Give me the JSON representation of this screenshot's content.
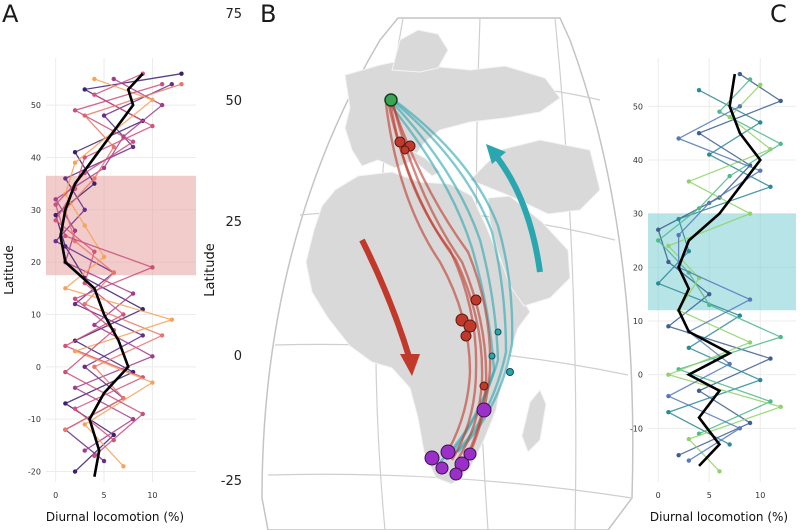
{
  "panels": {
    "a": {
      "letter": "A"
    },
    "b": {
      "letter": "B"
    },
    "c": {
      "letter": "C"
    }
  },
  "colors": {
    "band_a": "#e8a0a0",
    "band_c": "#7ccfd4",
    "mean_line": "#000000",
    "autumn_track": "#c0392b",
    "spring_track": "#2aa6b0",
    "breeding_site": "#3aa655",
    "wintering_site": "#9b30c8",
    "land": "#d9d9d9",
    "grid": "#ececec"
  },
  "map": {
    "lat_title": "Latitude",
    "lat_ticks": [
      "75",
      "50",
      "25",
      "0",
      "-25"
    ],
    "arrow_autumn": "autumn (southward)",
    "arrow_spring": "spring (northward)"
  },
  "chart_data": [
    {
      "panel": "A",
      "type": "line",
      "xlabel": "Diurnal locomotion (%)",
      "ylabel": "Latitude",
      "xlim": [
        -1,
        14.5
      ],
      "ylim": [
        -22,
        59
      ],
      "xticks": [
        0,
        5,
        10
      ],
      "yticks": [
        -20,
        -10,
        0,
        10,
        20,
        30,
        40,
        50
      ],
      "grid": true,
      "band": {
        "lat_from": 17.5,
        "lat_to": 36.5
      },
      "mean_line": {
        "lat": [
          -21,
          -16,
          -10,
          -5,
          0,
          5,
          10,
          15,
          20,
          25,
          30,
          35,
          40,
          45,
          50,
          53,
          56
        ],
        "values": [
          4,
          4.5,
          3.5,
          5,
          7.5,
          6.5,
          5,
          4,
          1,
          0.5,
          1,
          2,
          4,
          6,
          8,
          7.5,
          9
        ]
      },
      "series_colors": [
        "#3d1f6e",
        "#6a2c8a",
        "#a13e8a",
        "#d4517a",
        "#e9766a",
        "#f4a35a",
        "#c94f7c"
      ],
      "series": [
        {
          "lat": [
            -20,
            -13,
            -7,
            -1,
            5,
            11,
            17,
            23,
            29,
            35,
            41,
            47,
            53,
            56
          ],
          "values": [
            2,
            6,
            1,
            8,
            2,
            9,
            3,
            1,
            0,
            4,
            2,
            9,
            3,
            13
          ]
        },
        {
          "lat": [
            -18,
            -12,
            -6,
            0,
            6,
            12,
            18,
            24,
            30,
            36,
            42,
            48,
            54
          ],
          "values": [
            5,
            1,
            7,
            3,
            9,
            2,
            6,
            0,
            3,
            1,
            8,
            5,
            12
          ]
        },
        {
          "lat": [
            -16,
            -10,
            -4,
            2,
            8,
            14,
            20,
            26,
            32,
            38,
            44,
            50,
            55
          ],
          "values": [
            3,
            8,
            2,
            10,
            4,
            8,
            1,
            2,
            0,
            5,
            7,
            11,
            6
          ]
        },
        {
          "lat": [
            -14,
            -8,
            -2,
            4,
            10,
            16,
            22,
            28,
            34,
            40,
            46,
            52,
            56
          ],
          "values": [
            6,
            2,
            9,
            1,
            7,
            3,
            4,
            0,
            2,
            3,
            10,
            4,
            9
          ]
        },
        {
          "lat": [
            -12,
            -6,
            0,
            6,
            12,
            18,
            24,
            30,
            36,
            42,
            48,
            54
          ],
          "values": [
            1,
            7,
            4,
            11,
            3,
            6,
            2,
            1,
            4,
            6,
            3,
            13
          ]
        },
        {
          "lat": [
            -19,
            -11,
            -3,
            3,
            9,
            15,
            21,
            27,
            33,
            39,
            45,
            51,
            55
          ],
          "values": [
            7,
            3,
            10,
            2,
            12,
            1,
            5,
            3,
            1,
            2,
            6,
            10,
            4
          ]
        },
        {
          "lat": [
            -17,
            -9,
            -1,
            7,
            13,
            19,
            25,
            31,
            37,
            43,
            49,
            54
          ],
          "values": [
            4,
            9,
            1,
            6,
            2,
            10,
            1,
            0,
            3,
            8,
            2,
            11
          ]
        }
      ]
    },
    {
      "panel": "C",
      "type": "line",
      "xlabel": "Diurnal locomotion (%)",
      "ylabel": "",
      "xlim": [
        -1,
        13.5
      ],
      "ylim": [
        -20,
        59
      ],
      "xticks": [
        0,
        5,
        10
      ],
      "yticks": [
        -10,
        0,
        10,
        20,
        30,
        40,
        50
      ],
      "grid": true,
      "band": {
        "lat_from": 12,
        "lat_to": 30
      },
      "mean_line": {
        "lat": [
          -17,
          -13,
          -8,
          -3,
          0,
          4,
          8,
          12,
          16,
          20,
          25,
          30,
          35,
          40,
          45,
          50,
          56
        ],
        "values": [
          4,
          6,
          4,
          6,
          3,
          7,
          3,
          2,
          3,
          2,
          3,
          6,
          8,
          10,
          8,
          7,
          7.5
        ]
      },
      "series_colors": [
        "#3d5f8f",
        "#2a8a96",
        "#4fb88c",
        "#8fd36a",
        "#557ab8"
      ],
      "series": [
        {
          "lat": [
            -15,
            -9,
            -3,
            3,
            9,
            15,
            21,
            27,
            33,
            39,
            45,
            51,
            56
          ],
          "values": [
            2,
            9,
            4,
            11,
            1,
            5,
            1,
            0,
            6,
            9,
            4,
            12,
            8
          ]
        },
        {
          "lat": [
            -13,
            -7,
            -1,
            5,
            11,
            17,
            23,
            29,
            35,
            41,
            47,
            53
          ],
          "values": [
            7,
            1,
            10,
            3,
            8,
            0,
            3,
            2,
            11,
            5,
            10,
            4
          ]
        },
        {
          "lat": [
            -11,
            -5,
            1,
            7,
            13,
            19,
            25,
            31,
            37,
            43,
            49,
            55
          ],
          "values": [
            4,
            11,
            2,
            12,
            5,
            3,
            0,
            4,
            7,
            12,
            6,
            9
          ]
        },
        {
          "lat": [
            -18,
            -12,
            -6,
            0,
            6,
            12,
            18,
            24,
            30,
            36,
            42,
            48,
            54
          ],
          "values": [
            6,
            3,
            12,
            1,
            9,
            2,
            4,
            1,
            9,
            3,
            11,
            7,
            10
          ]
        },
        {
          "lat": [
            -16,
            -10,
            -4,
            2,
            8,
            14,
            20,
            26,
            32,
            38,
            44,
            50
          ],
          "values": [
            3,
            8,
            1,
            7,
            3,
            9,
            2,
            2,
            5,
            10,
            2,
            8
          ]
        }
      ]
    }
  ]
}
